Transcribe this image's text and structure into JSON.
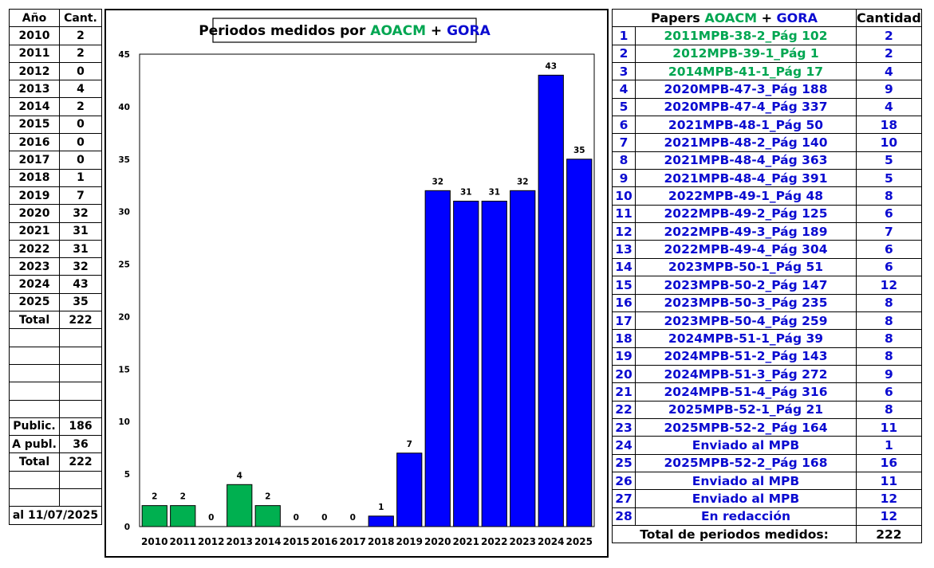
{
  "colors": {
    "green": "#00b050",
    "blue": "#0000ff",
    "green_text": "#00a651",
    "blue_text": "#0b0bd0"
  },
  "left_table": {
    "header": [
      "Año",
      "Cant."
    ],
    "rows": [
      [
        "2010",
        "2"
      ],
      [
        "2011",
        "2"
      ],
      [
        "2012",
        "0"
      ],
      [
        "2013",
        "4"
      ],
      [
        "2014",
        "2"
      ],
      [
        "2015",
        "0"
      ],
      [
        "2016",
        "0"
      ],
      [
        "2017",
        "0"
      ],
      [
        "2018",
        "1"
      ],
      [
        "2019",
        "7"
      ],
      [
        "2020",
        "32"
      ],
      [
        "2021",
        "31"
      ],
      [
        "2022",
        "31"
      ],
      [
        "2023",
        "32"
      ],
      [
        "2024",
        "43"
      ],
      [
        "2025",
        "35"
      ]
    ],
    "total_label": "Total",
    "total_value": "222",
    "public_label": "Public.",
    "public_value": "186",
    "apubl_label": "A publ.",
    "apubl_value": "36",
    "total2_label": "Total",
    "total2_value": "222",
    "date_label": "al 11/07/2025"
  },
  "chart_data": {
    "type": "bar",
    "title_prefix": "Periodos medidos por ",
    "title_aoacm": "AOACM",
    "title_plus": " + ",
    "title_gora": "GORA",
    "categories": [
      "2010",
      "2011",
      "2012",
      "2013",
      "2014",
      "2015",
      "2016",
      "2017",
      "2018",
      "2019",
      "2020",
      "2021",
      "2022",
      "2023",
      "2024",
      "2025"
    ],
    "values": [
      2,
      2,
      0,
      4,
      2,
      0,
      0,
      0,
      1,
      7,
      32,
      31,
      31,
      32,
      43,
      35
    ],
    "bar_colors": [
      "green",
      "green",
      "green",
      "green",
      "green",
      "green",
      "green",
      "green",
      "blue",
      "blue",
      "blue",
      "blue",
      "blue",
      "blue",
      "blue",
      "blue"
    ],
    "ylim": [
      0,
      45
    ],
    "yticks": [
      0,
      5,
      10,
      15,
      20,
      25,
      30,
      35,
      40,
      45
    ],
    "grid": false
  },
  "right_table": {
    "header_prefix": "Papers ",
    "header_aoacm": "AOACM",
    "header_plus": " + ",
    "header_gora": "GORA",
    "header_qty": "Cantidad",
    "rows": [
      {
        "n": "1",
        "paper": "2011MPB-38-2_Pág 102",
        "q": "2",
        "c": "green"
      },
      {
        "n": "2",
        "paper": "2012MPB-39-1_Pág 1",
        "q": "2",
        "c": "green"
      },
      {
        "n": "3",
        "paper": "2014MPB-41-1_Pág 17",
        "q": "4",
        "c": "green"
      },
      {
        "n": "4",
        "paper": "2020MPB-47-3_Pág 188",
        "q": "9",
        "c": "blue"
      },
      {
        "n": "5",
        "paper": "2020MPB-47-4_Pág 337",
        "q": "4",
        "c": "blue"
      },
      {
        "n": "6",
        "paper": "2021MPB-48-1_Pág 50",
        "q": "18",
        "c": "blue"
      },
      {
        "n": "7",
        "paper": "2021MPB-48-2_Pág 140",
        "q": "10",
        "c": "blue"
      },
      {
        "n": "8",
        "paper": "2021MPB-48-4_Pág 363",
        "q": "5",
        "c": "blue"
      },
      {
        "n": "9",
        "paper": "2021MPB-48-4_Pág 391",
        "q": "5",
        "c": "blue"
      },
      {
        "n": "10",
        "paper": "2022MPB-49-1_Pág 48",
        "q": "8",
        "c": "blue"
      },
      {
        "n": "11",
        "paper": "2022MPB-49-2_Pág 125",
        "q": "6",
        "c": "blue"
      },
      {
        "n": "12",
        "paper": "2022MPB-49-3_Pág 189",
        "q": "7",
        "c": "blue"
      },
      {
        "n": "13",
        "paper": "2022MPB-49-4_Pág 304",
        "q": "6",
        "c": "blue"
      },
      {
        "n": "14",
        "paper": "2023MPB-50-1_Pág 51",
        "q": "6",
        "c": "blue"
      },
      {
        "n": "15",
        "paper": "2023MPB-50-2_Pág 147",
        "q": "12",
        "c": "blue"
      },
      {
        "n": "16",
        "paper": "2023MPB-50-3_Pág 235",
        "q": "8",
        "c": "blue"
      },
      {
        "n": "17",
        "paper": "2023MPB-50-4_Pág 259",
        "q": "8",
        "c": "blue"
      },
      {
        "n": "18",
        "paper": "2024MPB-51-1_Pág 39",
        "q": "8",
        "c": "blue"
      },
      {
        "n": "19",
        "paper": "2024MPB-51-2_Pág 143",
        "q": "8",
        "c": "blue"
      },
      {
        "n": "20",
        "paper": "2024MPB-51-3_Pág 272",
        "q": "9",
        "c": "blue"
      },
      {
        "n": "21",
        "paper": "2024MPB-51-4_Pág 316",
        "q": "6",
        "c": "blue"
      },
      {
        "n": "22",
        "paper": "2025MPB-52-1_Pág 21",
        "q": "8",
        "c": "blue"
      },
      {
        "n": "23",
        "paper": "2025MPB-52-2_Pág 164",
        "q": "11",
        "c": "blue"
      },
      {
        "n": "24",
        "paper": "Enviado al MPB",
        "q": "1",
        "c": "blue"
      },
      {
        "n": "25",
        "paper": "2025MPB-52-2_Pág 168",
        "q": "16",
        "c": "blue"
      },
      {
        "n": "26",
        "paper": "Enviado al MPB",
        "q": "11",
        "c": "blue"
      },
      {
        "n": "27",
        "paper": "Enviado al MPB",
        "q": "12",
        "c": "blue"
      },
      {
        "n": "28",
        "paper": "En redacción",
        "q": "12",
        "c": "blue"
      }
    ],
    "footer_label": "Total de periodos medidos:",
    "footer_value": "222"
  }
}
